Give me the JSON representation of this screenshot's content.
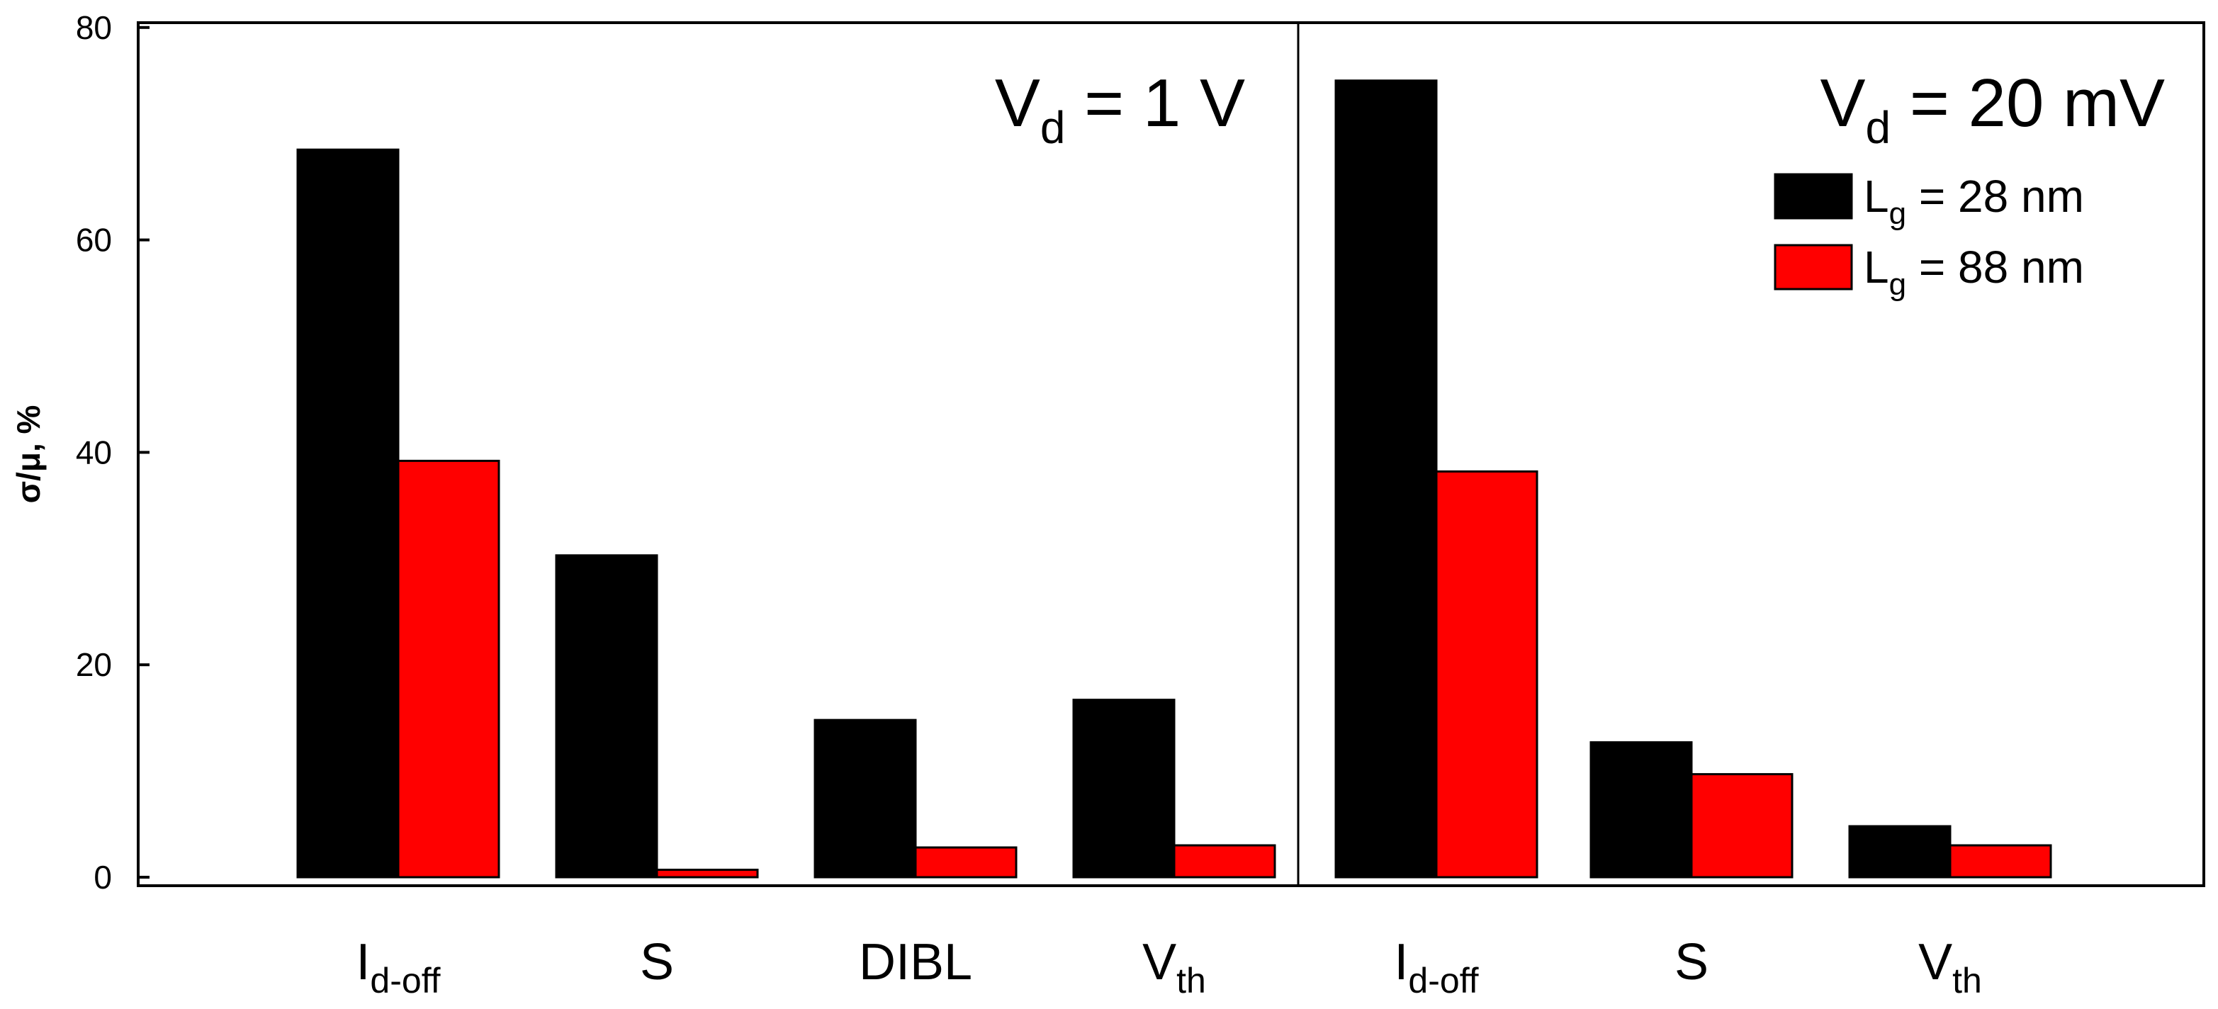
{
  "chart_data": {
    "type": "bar",
    "ylabel": "σ/μ, %",
    "ylim": [
      0,
      80
    ],
    "yticks": [
      0,
      20,
      40,
      60,
      80
    ],
    "grid": false,
    "legend_position": "top-right",
    "colors": {
      "Lg = 28 nm": "#000000",
      "Lg = 88 nm": "#ff0000"
    },
    "legend": [
      {
        "name": "Lg = 28 nm",
        "base": "L",
        "sub": "g",
        "rest": " = 28 nm",
        "color": "#000000"
      },
      {
        "name": "Lg = 88 nm",
        "base": "L",
        "sub": "g",
        "rest": " = 88 nm",
        "color": "#ff0000"
      }
    ],
    "panels": [
      {
        "title": "Vd = 1 V",
        "title_parts": {
          "base": "V",
          "sub": "d",
          "rest": " = 1 V"
        },
        "categories": [
          {
            "label": "Id-off",
            "base": "I",
            "sub": "d-off"
          },
          {
            "label": "S",
            "base": "S",
            "sub": ""
          },
          {
            "label": "DIBL",
            "base": "DIBL",
            "sub": ""
          },
          {
            "label": "Vth",
            "base": "V",
            "sub": "th"
          }
        ],
        "series": [
          {
            "name": "Lg = 28 nm",
            "values": [
              68.5,
              30.3,
              14.8,
              16.7
            ]
          },
          {
            "name": "Lg = 88 nm",
            "values": [
              39.2,
              0.7,
              2.8,
              3.0
            ]
          }
        ]
      },
      {
        "title": "Vd = 20 mV",
        "title_parts": {
          "base": "V",
          "sub": "d",
          "rest": " = 20 mV"
        },
        "categories": [
          {
            "label": "Id-off",
            "base": "I",
            "sub": "d-off"
          },
          {
            "label": "S",
            "base": "S",
            "sub": ""
          },
          {
            "label": "Vth",
            "base": "V",
            "sub": "th"
          }
        ],
        "series": [
          {
            "name": "Lg = 28 nm",
            "values": [
              75.0,
              12.7,
              4.8
            ]
          },
          {
            "name": "Lg = 88 nm",
            "values": [
              38.2,
              9.7,
              3.0
            ]
          }
        ]
      }
    ]
  }
}
